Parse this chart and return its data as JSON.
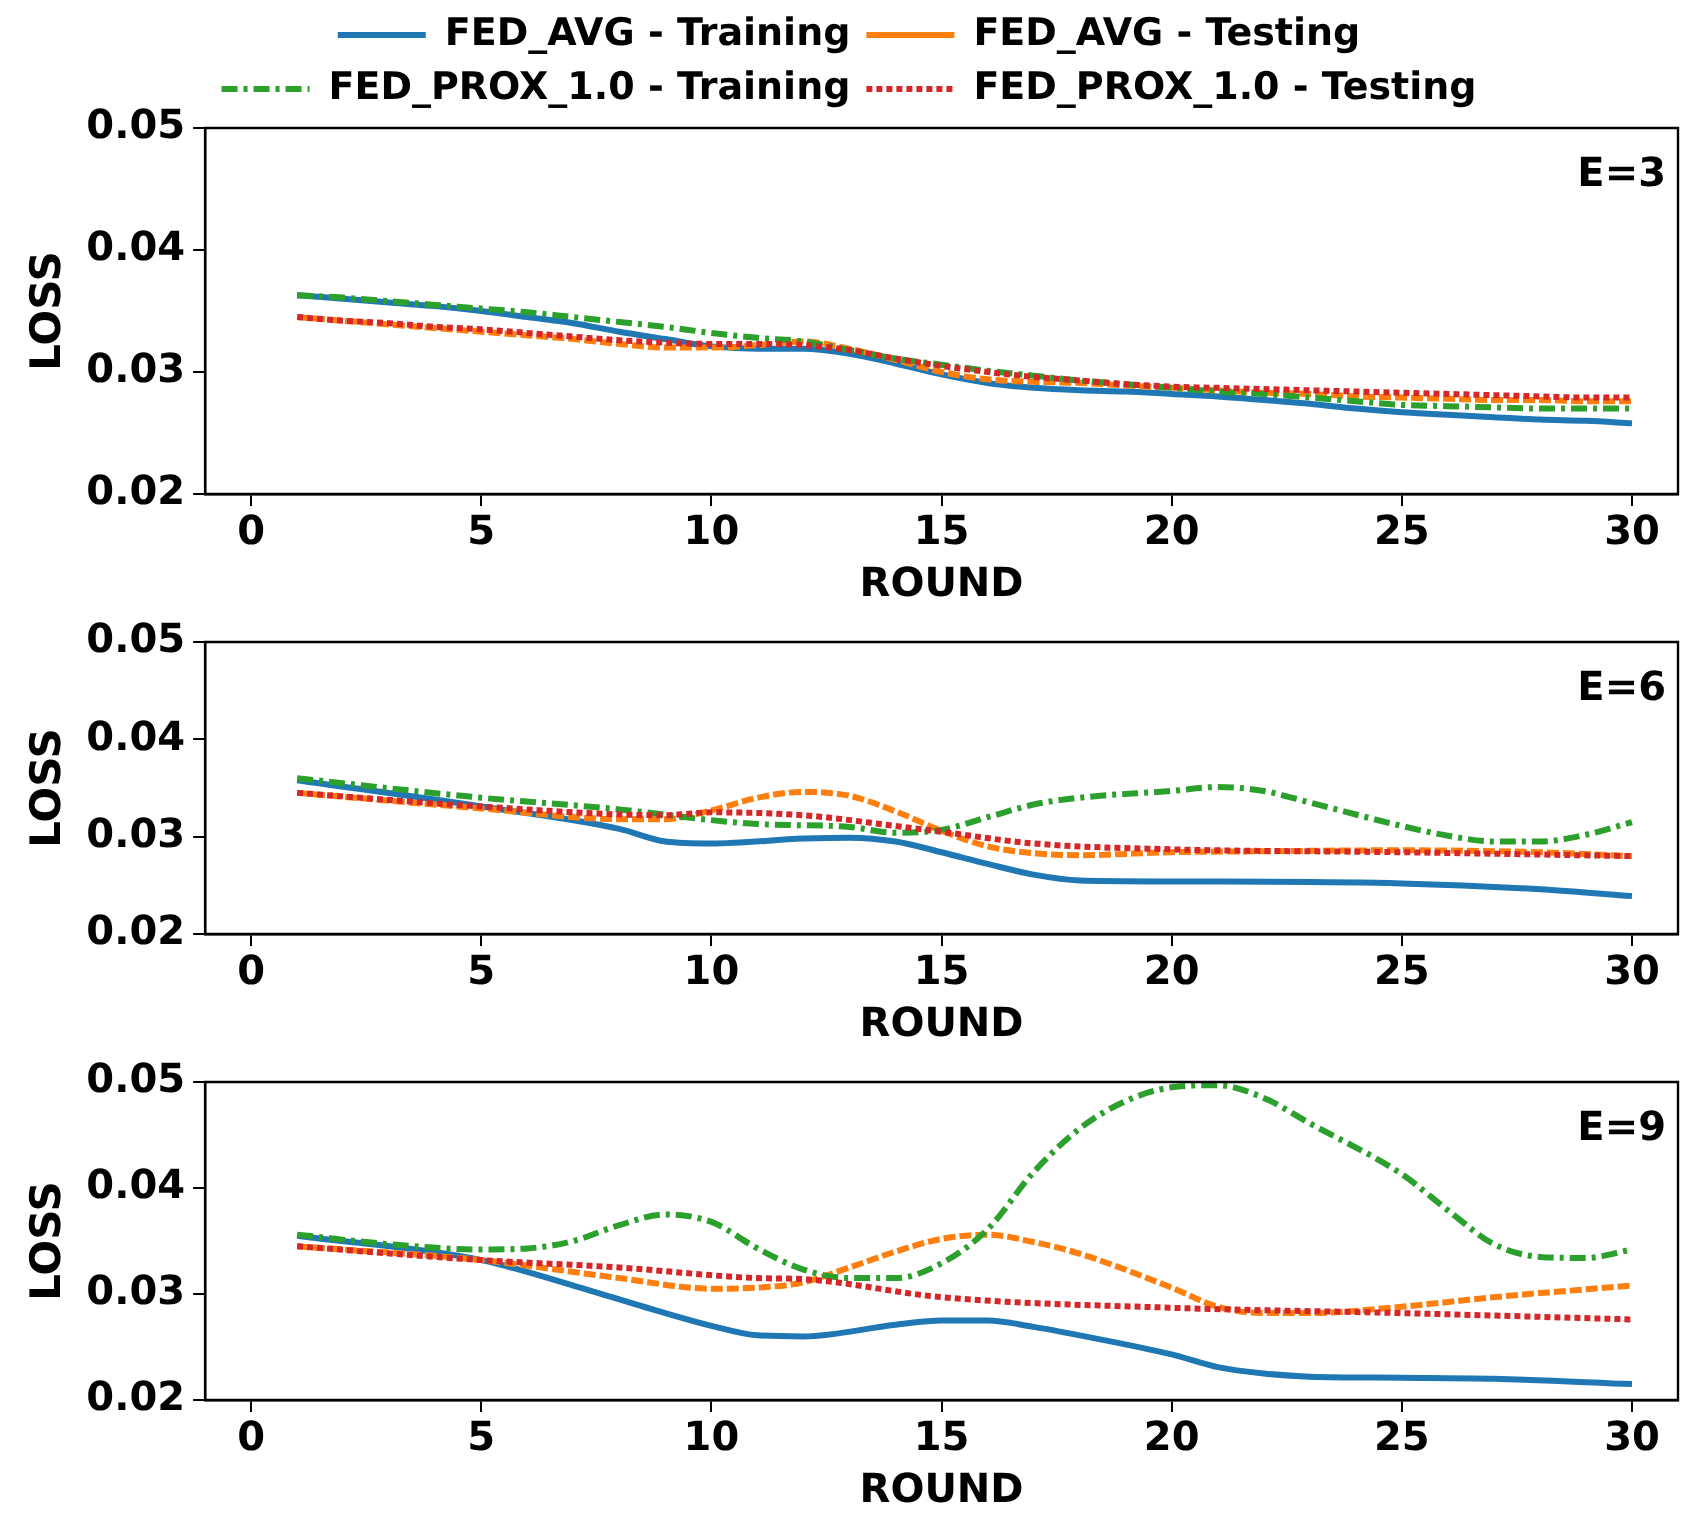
{
  "chart_data": [
    {
      "type": "line",
      "xlabel": "ROUND",
      "ylabel": "LOSS",
      "annotations": [
        "E=3"
      ],
      "xlim": [
        -1,
        31
      ],
      "xticks": [
        0,
        5,
        10,
        15,
        20,
        25,
        30
      ],
      "ylim": [
        0.02,
        0.05
      ],
      "yticks": [
        0.02,
        0.03,
        0.04,
        0.05
      ],
      "grid": false,
      "legend": "top",
      "marker": "none",
      "series": [
        {
          "name": "FED_AVG - Training",
          "color": "#1f77b4",
          "line_style": "solid",
          "x": [
            1,
            2,
            3,
            4,
            5,
            6,
            7,
            8,
            9,
            10,
            11,
            12,
            13,
            14,
            15,
            16,
            17,
            18,
            19,
            20,
            21,
            22,
            23,
            24,
            25,
            26,
            27,
            28,
            29,
            30
          ],
          "values": [
            0.0363,
            0.036,
            0.0357,
            0.0354,
            0.035,
            0.0345,
            0.034,
            0.0333,
            0.0327,
            0.0321,
            0.0319,
            0.0319,
            0.0315,
            0.0307,
            0.0298,
            0.0291,
            0.0287,
            0.0285,
            0.0284,
            0.0282,
            0.028,
            0.0277,
            0.0274,
            0.027,
            0.0267,
            0.0265,
            0.0263,
            0.0261,
            0.026,
            0.0258
          ]
        },
        {
          "name": "FED_AVG - Testing",
          "color": "#ff7f0e",
          "line_style": "dashed",
          "x": [
            1,
            2,
            3,
            4,
            5,
            6,
            7,
            8,
            9,
            10,
            11,
            12,
            13,
            14,
            15,
            16,
            17,
            18,
            19,
            20,
            21,
            22,
            23,
            24,
            25,
            26,
            27,
            28,
            29,
            30
          ],
          "values": [
            0.0345,
            0.0342,
            0.0339,
            0.0336,
            0.0333,
            0.033,
            0.0327,
            0.0323,
            0.032,
            0.032,
            0.0322,
            0.0325,
            0.0319,
            0.031,
            0.03,
            0.0294,
            0.0292,
            0.0291,
            0.0289,
            0.0287,
            0.0285,
            0.0283,
            0.0282,
            0.028,
            0.0279,
            0.0278,
            0.0277,
            0.0277,
            0.0276,
            0.0276
          ]
        },
        {
          "name": "FED_PROX_1.0 - Training",
          "color": "#2ca02c",
          "line_style": "dashdot",
          "x": [
            1,
            2,
            3,
            4,
            5,
            6,
            7,
            8,
            9,
            10,
            11,
            12,
            13,
            14,
            15,
            16,
            17,
            18,
            19,
            20,
            21,
            22,
            23,
            24,
            25,
            26,
            27,
            28,
            29,
            30
          ],
          "values": [
            0.0363,
            0.0361,
            0.0358,
            0.0355,
            0.0352,
            0.0349,
            0.0345,
            0.0341,
            0.0337,
            0.0332,
            0.0328,
            0.0325,
            0.0318,
            0.0311,
            0.0306,
            0.0301,
            0.0297,
            0.0293,
            0.029,
            0.0287,
            0.0284,
            0.0282,
            0.0279,
            0.0276,
            0.0273,
            0.0272,
            0.0271,
            0.027,
            0.027,
            0.027
          ]
        },
        {
          "name": "FED_PROX_1.0 - Testing",
          "color": "#d62728",
          "line_style": "dotted",
          "x": [
            1,
            2,
            3,
            4,
            5,
            6,
            7,
            8,
            9,
            10,
            11,
            12,
            13,
            14,
            15,
            16,
            17,
            18,
            19,
            20,
            21,
            22,
            23,
            24,
            25,
            26,
            27,
            28,
            29,
            30
          ],
          "values": [
            0.0345,
            0.0342,
            0.034,
            0.0337,
            0.0335,
            0.0332,
            0.0329,
            0.0326,
            0.0324,
            0.0323,
            0.0323,
            0.0322,
            0.0318,
            0.0311,
            0.0305,
            0.03,
            0.0296,
            0.0293,
            0.029,
            0.0288,
            0.0287,
            0.0286,
            0.0285,
            0.0284,
            0.0283,
            0.0282,
            0.0281,
            0.028,
            0.0279,
            0.0279
          ]
        }
      ]
    },
    {
      "type": "line",
      "xlabel": "ROUND",
      "ylabel": "LOSS",
      "annotations": [
        "E=6"
      ],
      "xlim": [
        -1,
        31
      ],
      "xticks": [
        0,
        5,
        10,
        15,
        20,
        25,
        30
      ],
      "ylim": [
        0.02,
        0.05
      ],
      "yticks": [
        0.02,
        0.03,
        0.04,
        0.05
      ],
      "grid": false,
      "marker": "none",
      "series": [
        {
          "color": "#1f77b4",
          "line_style": "solid",
          "x": [
            1,
            5,
            8,
            9,
            10,
            12,
            13,
            14,
            15,
            16,
            17,
            18,
            20,
            25,
            28,
            30
          ],
          "values": [
            0.0358,
            0.0331,
            0.0308,
            0.0295,
            0.0293,
            0.0298,
            0.0299,
            0.0295,
            0.0284,
            0.0272,
            0.0261,
            0.0255,
            0.0254,
            0.0252,
            0.0246,
            0.0239
          ]
        },
        {
          "color": "#ff7f0e",
          "line_style": "dashed",
          "x": [
            1,
            5,
            8,
            9,
            10,
            11,
            12,
            13,
            14,
            15,
            16,
            17,
            18,
            20,
            22,
            25,
            28,
            30
          ],
          "values": [
            0.0345,
            0.0329,
            0.0318,
            0.0318,
            0.0327,
            0.034,
            0.0346,
            0.0342,
            0.0326,
            0.0306,
            0.029,
            0.0283,
            0.0281,
            0.0284,
            0.0285,
            0.0286,
            0.0284,
            0.028
          ]
        },
        {
          "color": "#2ca02c",
          "line_style": "dashdot",
          "x": [
            1,
            5,
            8,
            10,
            11,
            13,
            14,
            15,
            16,
            17,
            18,
            20,
            21,
            22,
            23,
            25,
            26,
            27,
            28,
            29,
            30
          ],
          "values": [
            0.036,
            0.034,
            0.0328,
            0.0317,
            0.0313,
            0.031,
            0.0304,
            0.0307,
            0.032,
            0.0333,
            0.034,
            0.0347,
            0.0351,
            0.0347,
            0.0335,
            0.0311,
            0.0301,
            0.0295,
            0.0295,
            0.0302,
            0.0315
          ]
        },
        {
          "color": "#d62728",
          "line_style": "dotted",
          "x": [
            1,
            5,
            9,
            10,
            12,
            14,
            15,
            17,
            20,
            25,
            30
          ],
          "values": [
            0.0345,
            0.0331,
            0.0322,
            0.0325,
            0.0322,
            0.0311,
            0.0305,
            0.0293,
            0.0287,
            0.0284,
            0.028
          ]
        }
      ]
    },
    {
      "type": "line",
      "xlabel": "ROUND",
      "ylabel": "LOSS",
      "annotations": [
        "E=9"
      ],
      "xlim": [
        -1,
        31
      ],
      "xticks": [
        0,
        5,
        10,
        15,
        20,
        25,
        30
      ],
      "ylim": [
        0.02,
        0.05
      ],
      "yticks": [
        0.02,
        0.03,
        0.04,
        0.05
      ],
      "grid": false,
      "marker": "none",
      "series": [
        {
          "color": "#1f77b4",
          "line_style": "solid",
          "x": [
            1,
            5,
            7,
            9,
            10,
            11,
            12,
            14,
            15,
            16,
            17,
            18,
            20,
            21,
            22,
            23,
            25,
            27,
            30
          ],
          "values": [
            0.0355,
            0.0332,
            0.0308,
            0.0282,
            0.027,
            0.0261,
            0.026,
            0.0271,
            0.0275,
            0.0275,
            0.0269,
            0.0261,
            0.0243,
            0.0231,
            0.0225,
            0.0222,
            0.0221,
            0.022,
            0.0215
          ]
        },
        {
          "color": "#ff7f0e",
          "line_style": "dashed",
          "x": [
            1,
            5,
            8,
            10,
            11,
            12,
            13,
            14,
            15,
            16,
            17,
            18,
            20,
            21,
            22,
            23,
            25,
            27,
            30
          ],
          "values": [
            0.0345,
            0.0332,
            0.0315,
            0.0305,
            0.0306,
            0.0311,
            0.0325,
            0.034,
            0.0352,
            0.0356,
            0.0349,
            0.0338,
            0.0306,
            0.0288,
            0.0282,
            0.0282,
            0.0288,
            0.0297,
            0.0308
          ]
        },
        {
          "color": "#2ca02c",
          "line_style": "dashdot",
          "x": [
            1,
            3,
            5,
            6,
            7,
            8,
            9,
            10,
            11,
            12,
            13,
            14,
            15,
            16,
            17,
            18,
            19,
            20,
            21,
            22,
            23,
            25,
            26,
            27,
            28,
            29,
            30
          ],
          "values": [
            0.0356,
            0.0347,
            0.0342,
            0.0343,
            0.035,
            0.0365,
            0.0375,
            0.0368,
            0.0343,
            0.0323,
            0.0315,
            0.0315,
            0.0329,
            0.0361,
            0.0415,
            0.0456,
            0.0482,
            0.0495,
            0.0497,
            0.0485,
            0.0461,
            0.0413,
            0.0379,
            0.0347,
            0.0335,
            0.0334,
            0.0342
          ]
        },
        {
          "color": "#d62728",
          "line_style": "dotted",
          "x": [
            1,
            5,
            8,
            11,
            12,
            15,
            20,
            25,
            30
          ],
          "values": [
            0.0345,
            0.0332,
            0.0325,
            0.0315,
            0.0314,
            0.0297,
            0.0287,
            0.0282,
            0.0276
          ]
        }
      ]
    }
  ]
}
